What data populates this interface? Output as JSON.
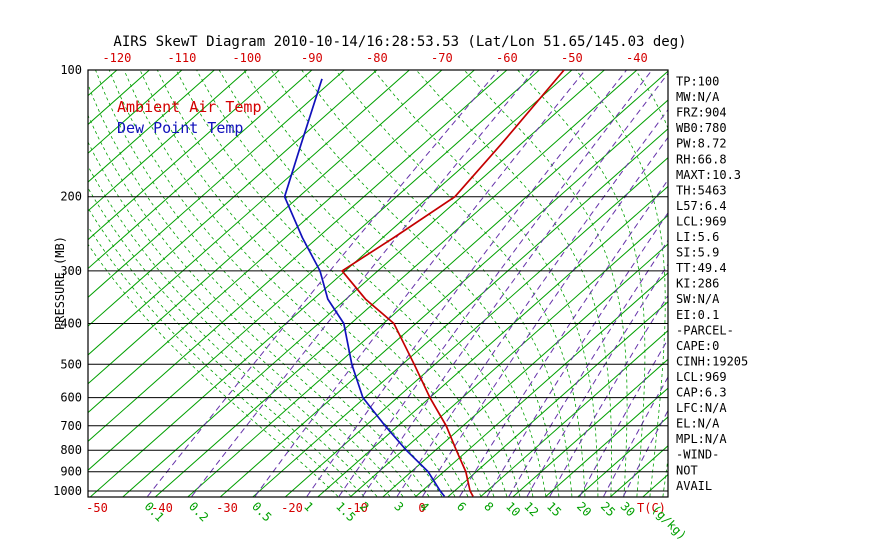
{
  "title": "AIRS SkewT Diagram 2010-10-14/16:28:53.53 (Lat/Lon 51.65/145.03 deg)",
  "legend": {
    "ambient": "Ambient Air Temp",
    "dewpoint": "Dew Point Temp"
  },
  "axes": {
    "pressure_axis_label": "PRESSURE (MB)",
    "pressure_ticks": [
      100,
      200,
      300,
      400,
      500,
      600,
      700,
      800,
      900,
      1000
    ],
    "top_temperature_ticks": [
      -120,
      -110,
      -100,
      -90,
      -80,
      -70,
      -60,
      -50,
      -40
    ],
    "bottom_temperature_ticks": [
      -50,
      -40,
      -30,
      -20,
      -10,
      0
    ],
    "temperature_unit_label": "T(C)",
    "mixing_ratio_unit_label": "(g/kg)",
    "mixing_ratio_ticks": [
      0.1,
      0.2,
      0.5,
      1,
      1.5,
      2,
      3,
      4,
      6,
      8,
      10,
      12,
      15,
      20,
      25,
      30
    ]
  },
  "readings": [
    "TP:100",
    "MW:N/A",
    "FRZ:904",
    "WB0:780",
    "PW:8.72",
    "RH:66.8",
    "MAXT:10.3",
    "TH:5463",
    "L57:6.4",
    "LCL:969",
    "LI:5.6",
    "SI:5.9",
    "TT:49.4",
    "KI:286",
    "SW:N/A",
    "EI:0.1",
    "-PARCEL-",
    "CAPE:0",
    "CINH:19205",
    "LCL:969",
    "CAP:6.3",
    "LFC:N/A",
    "EL:N/A",
    "MPL:N/A",
    "-WIND-",
    "NOT",
    "AVAIL"
  ],
  "colors": {
    "isotherm_green": "#00a000",
    "mixing_purple": "#6633aa",
    "temperature_red": "#c40000",
    "dewpoint_blue": "#1111bb",
    "label_red": "#d40000",
    "text_black": "#000000",
    "background": "#ffffff"
  },
  "chart_data": {
    "type": "line",
    "title": "AIRS SkewT Diagram 2010-10-14/16:28:53.53 (Lat/Lon 51.65/145.03 deg)",
    "projection": "skew-T log-P",
    "y_axis": {
      "label": "PRESSURE (MB)",
      "scale": "log",
      "range_mb": [
        100,
        1030
      ],
      "ticks": [
        100,
        200,
        300,
        400,
        500,
        600,
        700,
        800,
        900,
        1000
      ]
    },
    "x_axis": {
      "label": "T(C)",
      "top_ticks": [
        -120,
        -110,
        -100,
        -90,
        -80,
        -70,
        -60,
        -50,
        -40
      ],
      "bottom_ticks": [
        -50,
        -40,
        -30,
        -20,
        -10,
        0
      ]
    },
    "background_lines": {
      "isotherms_c": {
        "min": -125,
        "max": 40,
        "step": 5
      },
      "moist_adiabats_start_c": {
        "min": -12,
        "max": 60,
        "step": 2
      },
      "mixing_ratio_g_kg": [
        0.1,
        0.2,
        0.5,
        1,
        1.5,
        2,
        3,
        4,
        6,
        8,
        10,
        12,
        15,
        20,
        25,
        30
      ]
    },
    "series": [
      {
        "name": "Ambient Air Temp",
        "color_key": "temperature_red",
        "pressure_mb": [
          1030,
          1000,
          900,
          800,
          700,
          600,
          500,
          400,
          350,
          300,
          250,
          200,
          150,
          100
        ],
        "temperature_c": [
          8.8,
          7.4,
          3.4,
          -1.8,
          -7.6,
          -15.0,
          -23.2,
          -33.4,
          -42.0,
          -50.5,
          -48.3,
          -46.0,
          -48.0,
          -51.2
        ]
      },
      {
        "name": "Dew Point Temp",
        "color_key": "dewpoint_blue",
        "pressure_mb": [
          1030,
          1000,
          900,
          800,
          700,
          600,
          500,
          400,
          350,
          300,
          250,
          200,
          150,
          105
        ],
        "temperature_c": [
          4.4,
          2.8,
          -2.4,
          -9.5,
          -17.0,
          -25.3,
          -32.8,
          -41.1,
          -47.8,
          -53.9,
          -62.4,
          -72.2,
          -78.8,
          -86.9
        ]
      }
    ]
  }
}
